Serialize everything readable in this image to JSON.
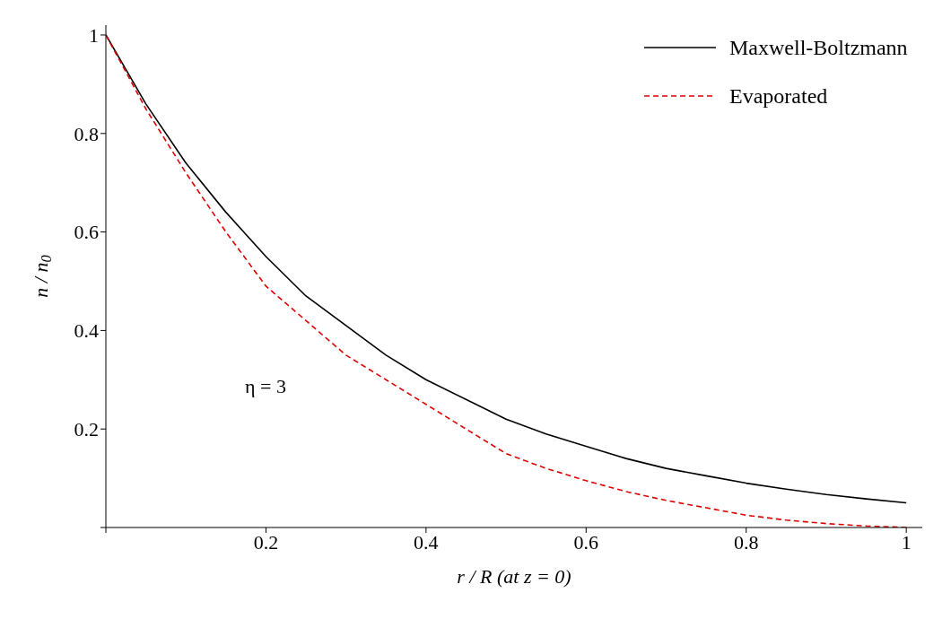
{
  "chart_data": {
    "type": "line",
    "xlabel": "r / R  (at z = 0)",
    "ylabel": "n / n$_{0}$",
    "annotations": [
      "η = 3"
    ],
    "xlim": [
      0,
      1.02
    ],
    "ylim": [
      0,
      1.02
    ],
    "xticks": [
      {
        "value": 0,
        "label": null
      },
      0.2,
      0.4,
      0.6,
      0.8,
      1
    ],
    "yticks": [
      {
        "value": 0,
        "label": null
      },
      0.2,
      0.4,
      0.6,
      0.8,
      1
    ],
    "grid": false,
    "legend": "top right",
    "marker": "none",
    "series": [
      {
        "name": "Maxwell-Boltzmann",
        "color": "#000000",
        "line_style": "solid",
        "x": [
          0,
          0.05,
          0.1,
          0.15,
          0.2,
          0.25,
          0.3,
          0.35,
          0.4,
          0.45,
          0.5,
          0.55,
          0.6,
          0.65,
          0.7,
          0.75,
          0.8,
          0.85,
          0.9,
          0.95,
          1
        ],
        "values": [
          1,
          0.86,
          0.74,
          0.64,
          0.55,
          0.47,
          0.41,
          0.35,
          0.3,
          0.26,
          0.22,
          0.19,
          0.165,
          0.14,
          0.12,
          0.105,
          0.09,
          0.078,
          0.067,
          0.058,
          0.05
        ]
      },
      {
        "name": "Evaporated",
        "color": "#dd0000",
        "line_style": "dashed",
        "x": [
          0,
          0.05,
          0.1,
          0.15,
          0.2,
          0.25,
          0.3,
          0.35,
          0.4,
          0.45,
          0.5,
          0.55,
          0.6,
          0.65,
          0.7,
          0.75,
          0.8,
          0.85,
          0.9,
          0.95,
          1
        ],
        "values": [
          1,
          0.85,
          0.72,
          0.6,
          0.49,
          0.42,
          0.35,
          0.3,
          0.25,
          0.2,
          0.15,
          0.12,
          0.095,
          0.073,
          0.055,
          0.04,
          0.025,
          0.015,
          0.008,
          0.003,
          0
        ]
      }
    ]
  }
}
